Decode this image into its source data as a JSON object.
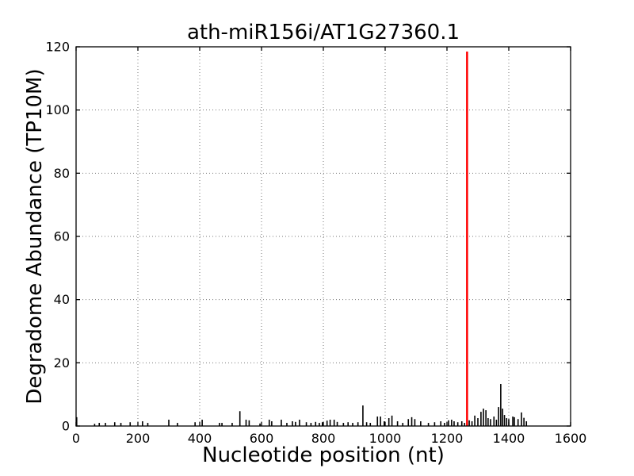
{
  "colors": {
    "background": "#ffffff",
    "bar": "#000000",
    "marker": "#ff0000",
    "grid": "#777777",
    "axis": "#000000",
    "text": "#000000"
  },
  "chart_data": {
    "type": "bar",
    "title": "ath-miR156i/AT1G27360.1",
    "xlabel": "Nucleotide position (nt)",
    "ylabel": "Degradome Abundance (TP10M)",
    "xlim": [
      0,
      1600
    ],
    "ylim": [
      0,
      120
    ],
    "xticks": [
      0,
      200,
      400,
      600,
      800,
      1000,
      1200,
      1400,
      1600
    ],
    "yticks": [
      0,
      20,
      40,
      60,
      80,
      100,
      120
    ],
    "grid": true,
    "grid_style": "dotted",
    "legend": null,
    "bars": [
      [
        2,
        2.8
      ],
      [
        60,
        0.7
      ],
      [
        75,
        1
      ],
      [
        95,
        1
      ],
      [
        125,
        1.2
      ],
      [
        145,
        1
      ],
      [
        175,
        1.2
      ],
      [
        215,
        1.5
      ],
      [
        232,
        1
      ],
      [
        300,
        2
      ],
      [
        328,
        1
      ],
      [
        385,
        1.2
      ],
      [
        408,
        2
      ],
      [
        464,
        1
      ],
      [
        472,
        1
      ],
      [
        505,
        1
      ],
      [
        530,
        4.7
      ],
      [
        550,
        2
      ],
      [
        560,
        1.8
      ],
      [
        595,
        0.8
      ],
      [
        625,
        2
      ],
      [
        633,
        1.5
      ],
      [
        664,
        2
      ],
      [
        682,
        1
      ],
      [
        700,
        1.5
      ],
      [
        710,
        1.3
      ],
      [
        723,
        2
      ],
      [
        745,
        1.2
      ],
      [
        760,
        1
      ],
      [
        775,
        1.3
      ],
      [
        787,
        1
      ],
      [
        797,
        1.2
      ],
      [
        812,
        1.7
      ],
      [
        822,
        2
      ],
      [
        835,
        2
      ],
      [
        845,
        1.3
      ],
      [
        865,
        1
      ],
      [
        880,
        1.2
      ],
      [
        895,
        1
      ],
      [
        912,
        1.2
      ],
      [
        928,
        6.5
      ],
      [
        940,
        1.2
      ],
      [
        952,
        1
      ],
      [
        975,
        3
      ],
      [
        985,
        3
      ],
      [
        997,
        1.5
      ],
      [
        1012,
        2.5
      ],
      [
        1022,
        3.3
      ],
      [
        1040,
        1.5
      ],
      [
        1057,
        1
      ],
      [
        1075,
        2.2
      ],
      [
        1086,
        2.8
      ],
      [
        1096,
        2.2
      ],
      [
        1115,
        1.5
      ],
      [
        1140,
        1
      ],
      [
        1160,
        1.2
      ],
      [
        1180,
        1.5
      ],
      [
        1192,
        1
      ],
      [
        1205,
        1.8
      ],
      [
        1215,
        2
      ],
      [
        1223,
        1.5
      ],
      [
        1235,
        1.2
      ],
      [
        1248,
        1.5
      ],
      [
        1257,
        1
      ],
      [
        1272,
        1.8
      ],
      [
        1281,
        1.5
      ],
      [
        1290,
        3.3
      ],
      [
        1300,
        2.5
      ],
      [
        1310,
        4.5
      ],
      [
        1318,
        5.5
      ],
      [
        1326,
        5
      ],
      [
        1333,
        2.5
      ],
      [
        1341,
        2.2
      ],
      [
        1352,
        3
      ],
      [
        1360,
        2
      ],
      [
        1367,
        6
      ],
      [
        1374,
        13.3
      ],
      [
        1380,
        5.5
      ],
      [
        1386,
        3.5
      ],
      [
        1393,
        2.5
      ],
      [
        1400,
        2.2
      ],
      [
        1413,
        3
      ],
      [
        1418,
        2.8
      ],
      [
        1430,
        2.2
      ],
      [
        1441,
        4.3
      ],
      [
        1449,
        2.6
      ],
      [
        1457,
        1.5
      ]
    ],
    "marker_line": {
      "x": 1265,
      "value": 118.5,
      "color": "#ff0000"
    }
  }
}
